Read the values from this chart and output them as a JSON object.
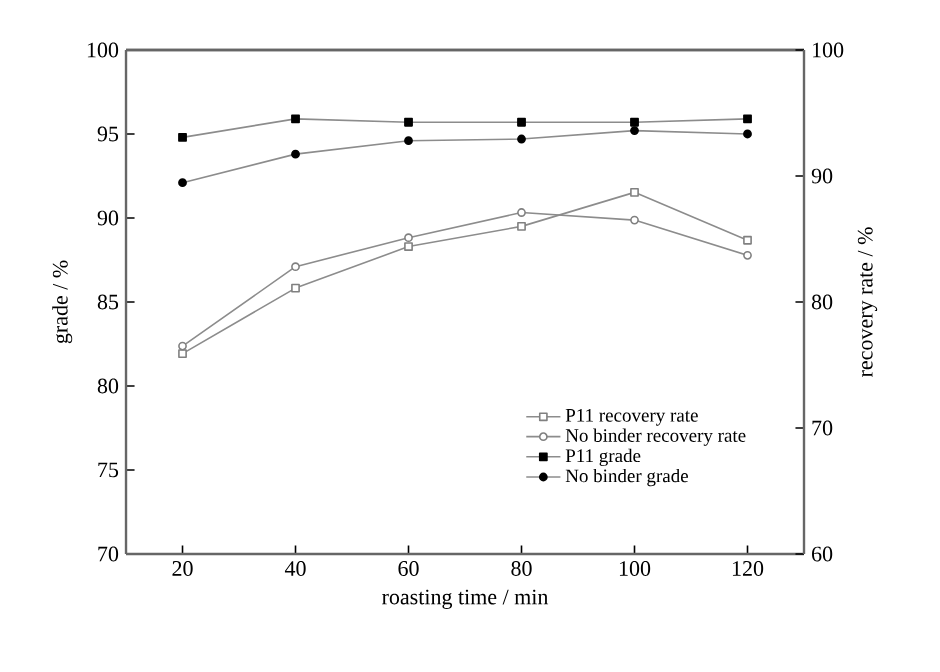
{
  "chart_data": {
    "type": "line",
    "xlabel": "roasting time / min",
    "ylabel": "grade / %",
    "y2label": "recovery rate / %",
    "x": [
      20,
      40,
      60,
      80,
      100,
      120
    ],
    "series": [
      {
        "name": "P11 recovery rate",
        "color": "#808080",
        "axis": "y2",
        "marker": "square",
        "values": [
          75.9,
          81.1,
          84.4,
          86.0,
          88.7,
          84.9
        ]
      },
      {
        "name": "No binder recovery rate",
        "color": "#808080",
        "axis": "y2",
        "marker": "circle",
        "values": [
          76.5,
          82.8,
          85.1,
          87.1,
          86.5,
          83.7
        ]
      },
      {
        "name": "P11 grade",
        "color": "#000000",
        "marker": "square",
        "values": [
          94.8,
          95.9,
          95.7,
          95.7,
          95.7,
          95.9
        ]
      },
      {
        "name": "No binder grade",
        "color": "#000000",
        "marker": "circle",
        "values": [
          92.1,
          93.8,
          94.6,
          94.7,
          95.2,
          95.0
        ]
      }
    ],
    "xlim": [
      10,
      130
    ],
    "xticks": [
      20,
      40,
      60,
      80,
      100,
      120
    ],
    "ylim": [
      70,
      100
    ],
    "yticks": [
      70,
      75,
      80,
      85,
      90,
      95,
      100
    ],
    "y2lim": [
      60,
      100
    ],
    "y2ticks": [
      60,
      70,
      80,
      90,
      100
    ],
    "legend": "bottom right",
    "grid": false,
    "line_style": "solid"
  }
}
